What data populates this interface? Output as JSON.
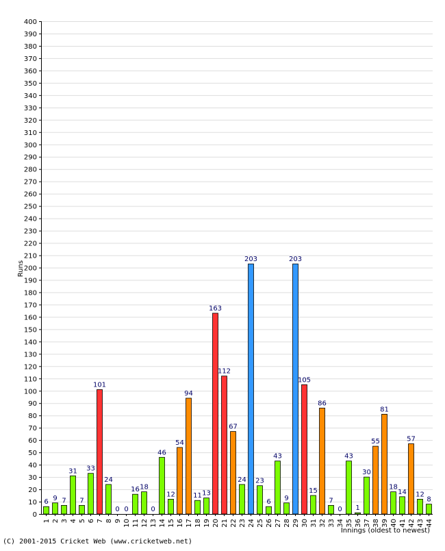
{
  "chart_data": {
    "type": "bar",
    "ylabel": "Runs",
    "xlabel": "Innings (oldest to newest)",
    "ylim": [
      0,
      400
    ],
    "ytick_step": 10,
    "grid": true,
    "categories": [
      "1",
      "2",
      "3",
      "4",
      "5",
      "6",
      "7",
      "8",
      "9",
      "10",
      "11",
      "12",
      "13",
      "14",
      "15",
      "16",
      "17",
      "18",
      "19",
      "20",
      "21",
      "22",
      "23",
      "24",
      "25",
      "26",
      "27",
      "28",
      "29",
      "30",
      "31",
      "32",
      "33",
      "34",
      "35",
      "36",
      "37",
      "38",
      "39",
      "40",
      "41",
      "42",
      "43",
      "44"
    ],
    "values": [
      6,
      9,
      7,
      31,
      7,
      33,
      101,
      24,
      0,
      0,
      16,
      18,
      0,
      46,
      12,
      54,
      94,
      11,
      13,
      163,
      112,
      67,
      24,
      203,
      23,
      6,
      43,
      9,
      203,
      105,
      15,
      86,
      7,
      0,
      43,
      1,
      30,
      55,
      81,
      18,
      14,
      57,
      12,
      8
    ],
    "colors": {
      "under_50": "#7cfc00",
      "50_to_99": "#ff8c00",
      "100_to_199": "#ff3333",
      "200_plus": "#3399ff"
    }
  },
  "copyright": "(C) 2001-2015 Cricket Web (www.cricketweb.net)"
}
